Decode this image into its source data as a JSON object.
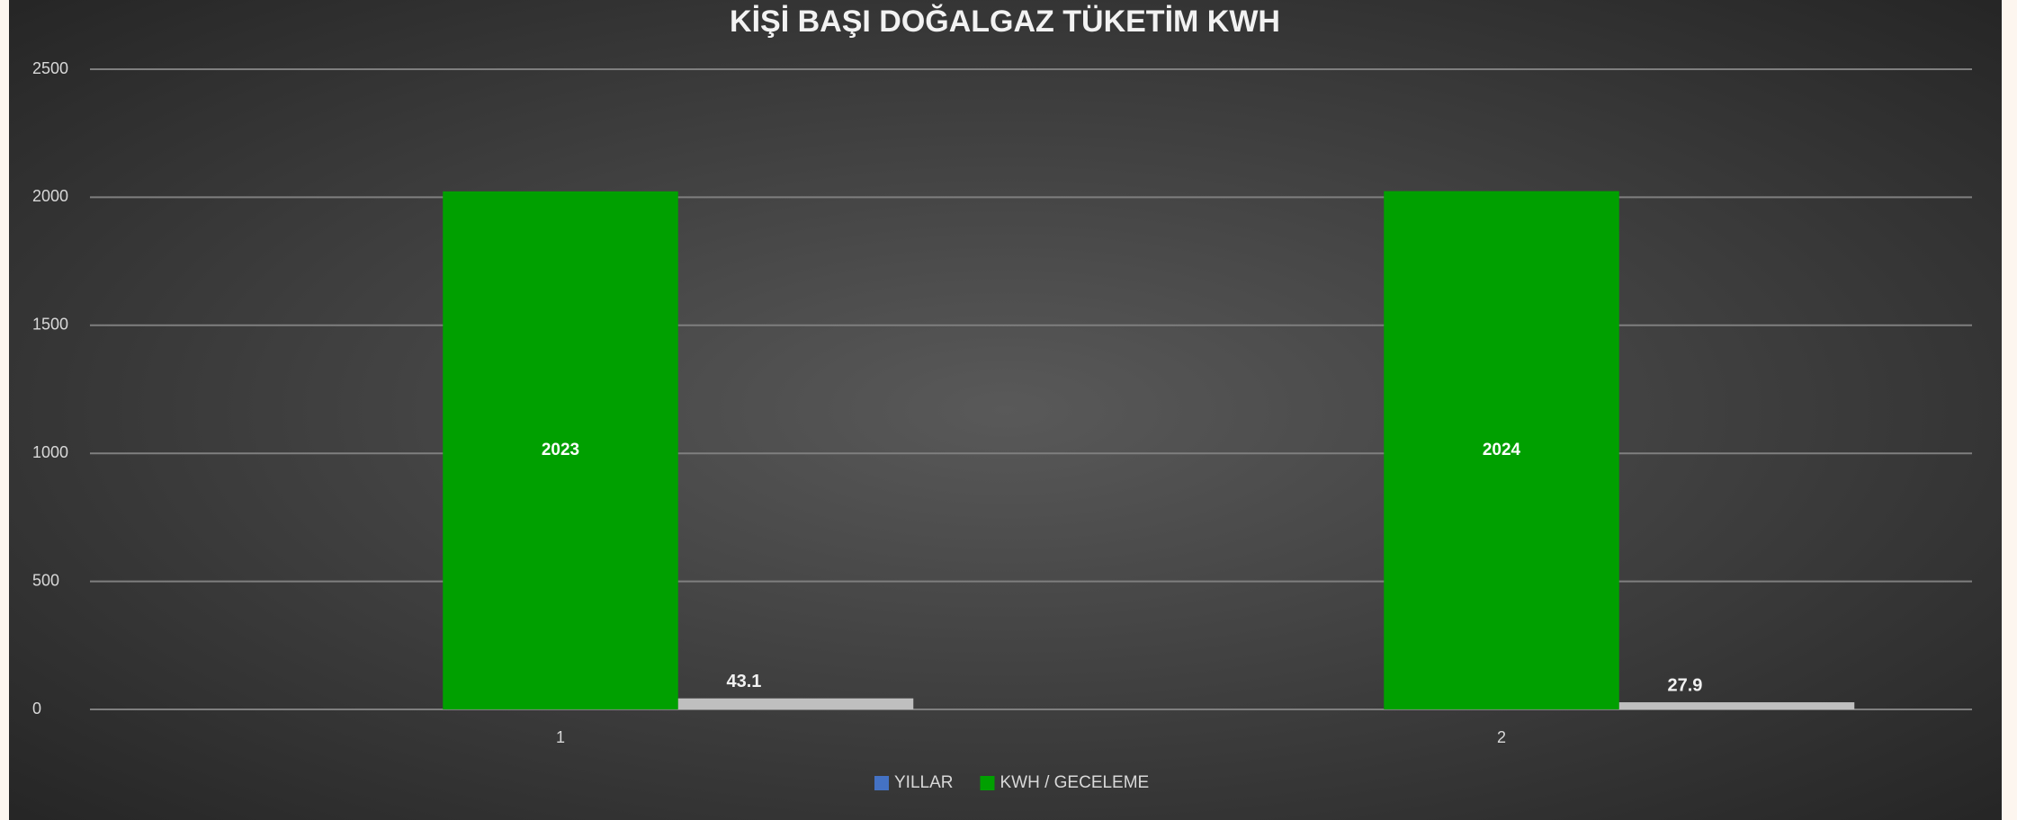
{
  "chart_data": {
    "type": "bar",
    "title": "KİŞİ BAŞI DOĞALGAZ TÜKETİM KWH",
    "categories": [
      "1",
      "2"
    ],
    "series": [
      {
        "name": "YILLAR",
        "color": "#00a000",
        "legend_color": "#4472c4",
        "values": [
          2023,
          2024
        ]
      },
      {
        "name": "KWH / GECELEME",
        "color": "#bfbfbf",
        "legend_color": "#00a000",
        "values": [
          43.1,
          27.9
        ]
      }
    ],
    "ylim": [
      0,
      2500
    ],
    "yticks": [
      0,
      500,
      1000,
      1500,
      2000,
      2500
    ],
    "grid": true,
    "legend": "bottom"
  }
}
